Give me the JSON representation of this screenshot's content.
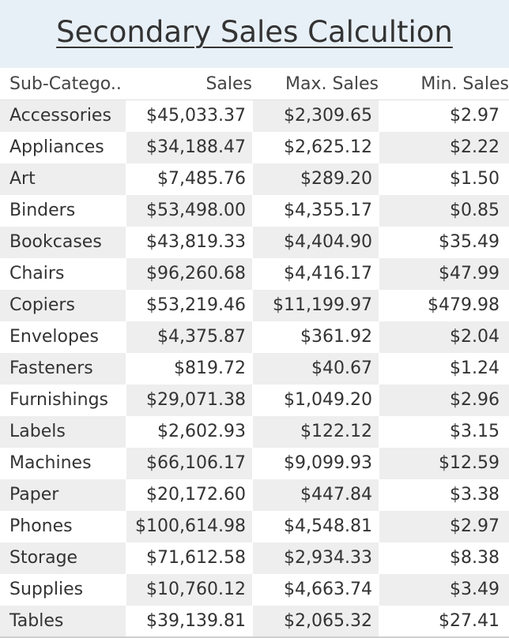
{
  "title": "Secondary Sales Calcultion",
  "columns": [
    "Sub-Catego..",
    "Sales",
    "Max. Sales",
    "Min. Sales"
  ],
  "chart_data": {
    "type": "table",
    "title": "Secondary Sales Calcultion",
    "columns": [
      "Sub-Catego..",
      "Sales",
      "Max. Sales",
      "Min. Sales"
    ],
    "rows": [
      [
        "Accessories",
        "$45,033.37",
        "$2,309.65",
        "$2.97"
      ],
      [
        "Appliances",
        "$34,188.47",
        "$2,625.12",
        "$2.22"
      ],
      [
        "Art",
        "$7,485.76",
        "$289.20",
        "$1.50"
      ],
      [
        "Binders",
        "$53,498.00",
        "$4,355.17",
        "$0.85"
      ],
      [
        "Bookcases",
        "$43,819.33",
        "$4,404.90",
        "$35.49"
      ],
      [
        "Chairs",
        "$96,260.68",
        "$4,416.17",
        "$47.99"
      ],
      [
        "Copiers",
        "$53,219.46",
        "$11,199.97",
        "$479.98"
      ],
      [
        "Envelopes",
        "$4,375.87",
        "$361.92",
        "$2.04"
      ],
      [
        "Fasteners",
        "$819.72",
        "$40.67",
        "$1.24"
      ],
      [
        "Furnishings",
        "$29,071.38",
        "$1,049.20",
        "$2.96"
      ],
      [
        "Labels",
        "$2,602.93",
        "$122.12",
        "$3.15"
      ],
      [
        "Machines",
        "$66,106.17",
        "$9,099.93",
        "$12.59"
      ],
      [
        "Paper",
        "$20,172.60",
        "$447.84",
        "$3.38"
      ],
      [
        "Phones",
        "$100,614.98",
        "$4,548.81",
        "$2.97"
      ],
      [
        "Storage",
        "$71,612.58",
        "$2,934.33",
        "$8.38"
      ],
      [
        "Supplies",
        "$10,760.12",
        "$4,663.74",
        "$3.49"
      ],
      [
        "Tables",
        "$39,139.81",
        "$2,065.32",
        "$27.41"
      ]
    ]
  },
  "colors": {
    "title_background": "#e8f0f7",
    "shaded_cell": "#eeeeee",
    "text": "#333333"
  }
}
